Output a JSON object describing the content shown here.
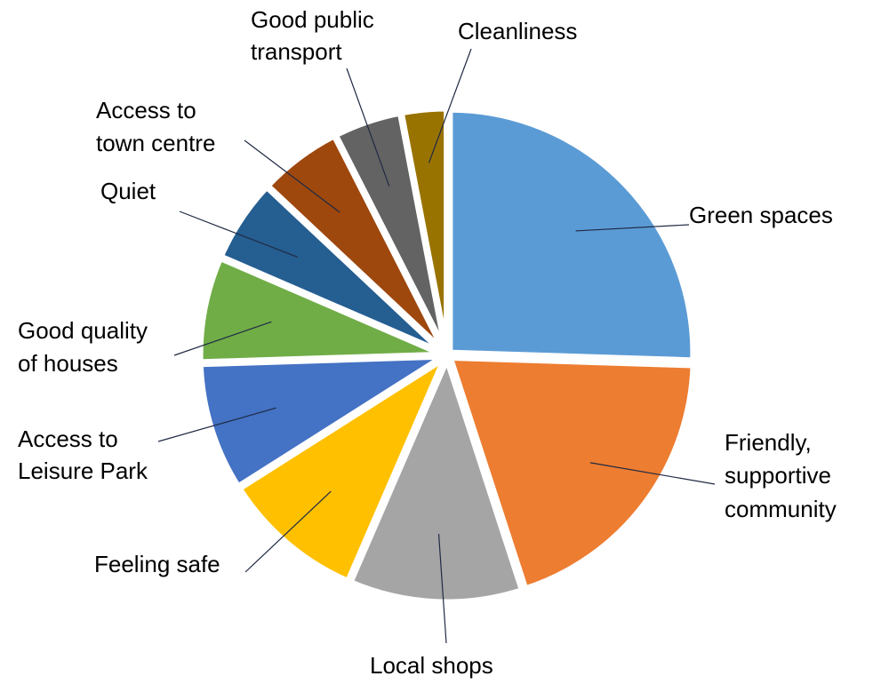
{
  "chart_data": {
    "type": "pie",
    "title": "",
    "start_angle_deg": 0,
    "direction": "clockwise",
    "slices": [
      {
        "label": "Green spaces",
        "value": 25.5,
        "color": "#5B9BD5"
      },
      {
        "label": "Friendly, supportive community",
        "value": 19.5,
        "color": "#ED7D31"
      },
      {
        "label": "Local shops",
        "value": 11.5,
        "color": "#A5A5A5"
      },
      {
        "label": "Feeling safe",
        "value": 9.5,
        "color": "#FFC000"
      },
      {
        "label": "Access to Leisure Park",
        "value": 8.5,
        "color": "#4472C4"
      },
      {
        "label": "Good quality of houses",
        "value": 7.0,
        "color": "#70AD47"
      },
      {
        "label": "Quiet",
        "value": 5.5,
        "color": "#255E91"
      },
      {
        "label": "Access to town centre",
        "value": 5.5,
        "color": "#9E480E"
      },
      {
        "label": "Good public transport",
        "value": 4.5,
        "color": "#636363"
      },
      {
        "label": "Cleanliness",
        "value": 3.0,
        "color": "#997300"
      }
    ]
  }
}
